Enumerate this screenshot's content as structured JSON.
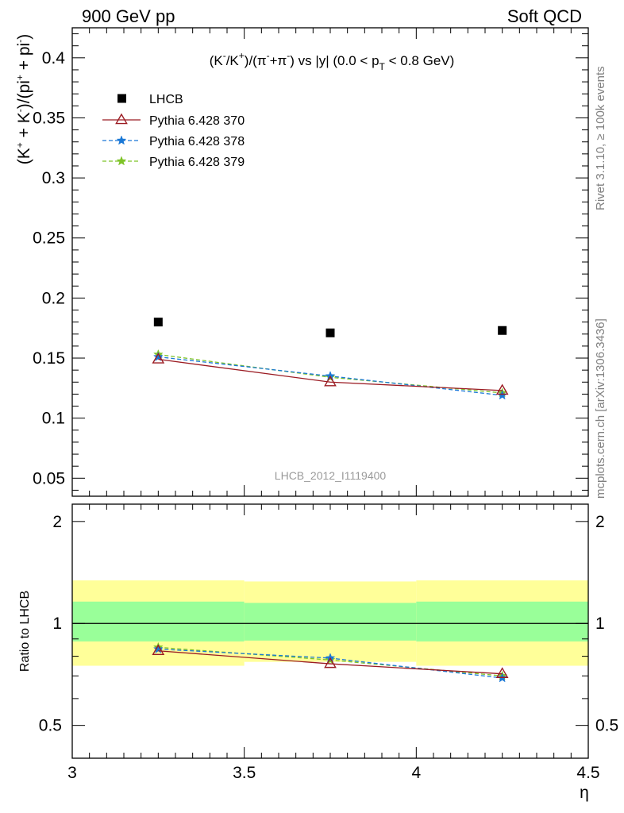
{
  "header": {
    "left": "900 GeV pp",
    "right": "Soft QCD"
  },
  "side_labels": {
    "top": "Rivet 3.1.10, ≥ 100k events",
    "bottom": "mcplots.cern.ch [arXiv:1306.3436]"
  },
  "chart_data": [
    {
      "type": "scatter",
      "panel": "main",
      "title_parts": [
        "(K",
        "-",
        "/K",
        "+",
        ")/(π",
        "-",
        "+π",
        "-",
        ") vs |y| (0.0 < p",
        "T",
        " < 0.8 GeV)"
      ],
      "ylabel_parts": [
        "(K",
        "+",
        " + K",
        "-",
        ")/(pi",
        "+",
        " + pi",
        "-",
        ")"
      ],
      "watermark": "LHCB_2012_I1119400",
      "xlim": [
        3,
        4.5
      ],
      "ylim": [
        0.035,
        0.425
      ],
      "yticks": [
        0.05,
        0.1,
        0.15,
        0.2,
        0.25,
        0.3,
        0.35,
        0.4
      ],
      "ytick_labels": [
        "0.05",
        "0.1",
        "0.15",
        "0.2",
        "0.25",
        "0.3",
        "0.35",
        "0.4"
      ],
      "legend_position": "top-left",
      "series": [
        {
          "name": "LHCB",
          "style": "data",
          "color": "#000000",
          "x": [
            3.25,
            3.75,
            4.25
          ],
          "y": [
            0.18,
            0.171,
            0.173
          ]
        },
        {
          "name": "Pythia 6.428 370",
          "style": "solid-triangle",
          "color": "#9b1c23",
          "x": [
            3.25,
            3.75,
            4.25
          ],
          "y": [
            0.149,
            0.13,
            0.123
          ]
        },
        {
          "name": "Pythia 6.428 378",
          "style": "dashed-star",
          "color": "#1a78d6",
          "x": [
            3.25,
            3.75,
            4.25
          ],
          "y": [
            0.151,
            0.135,
            0.119
          ]
        },
        {
          "name": "Pythia 6.428 379",
          "style": "dashed-star",
          "color": "#7ec328",
          "x": [
            3.25,
            3.75,
            4.25
          ],
          "y": [
            0.153,
            0.134,
            0.121
          ]
        }
      ]
    },
    {
      "type": "line",
      "panel": "ratio",
      "ylabel": "Ratio to LHCB",
      "xlabel": "η",
      "xlim": [
        3,
        4.5
      ],
      "ylim": [
        0.4,
        2.25
      ],
      "log_y": true,
      "xticks": [
        3,
        3.5,
        4,
        4.5
      ],
      "xtick_labels": [
        "3",
        "3.5",
        "4",
        "4.5"
      ],
      "yticks": [
        0.5,
        1,
        2
      ],
      "ytick_labels": [
        "0.5",
        "1",
        "2"
      ],
      "bands": [
        {
          "x_lo": 3.0,
          "x_hi": 3.5,
          "yellow": [
            0.75,
            1.34
          ],
          "green": [
            0.885,
            1.16
          ]
        },
        {
          "x_lo": 3.5,
          "x_hi": 4.0,
          "yellow": [
            0.77,
            1.33
          ],
          "green": [
            0.89,
            1.15
          ]
        },
        {
          "x_lo": 4.0,
          "x_hi": 4.5,
          "yellow": [
            0.75,
            1.34
          ],
          "green": [
            0.885,
            1.16
          ]
        }
      ],
      "series": [
        {
          "name": "Pythia 6.428 370",
          "style": "solid-triangle",
          "color": "#9b1c23",
          "x": [
            3.25,
            3.75,
            4.25
          ],
          "y": [
            0.83,
            0.76,
            0.71
          ]
        },
        {
          "name": "Pythia 6.428 378",
          "style": "dashed-star",
          "color": "#1a78d6",
          "x": [
            3.25,
            3.75,
            4.25
          ],
          "y": [
            0.84,
            0.79,
            0.69
          ]
        },
        {
          "name": "Pythia 6.428 379",
          "style": "dashed-star",
          "color": "#7ec328",
          "x": [
            3.25,
            3.75,
            4.25
          ],
          "y": [
            0.85,
            0.78,
            0.7
          ]
        }
      ]
    }
  ]
}
